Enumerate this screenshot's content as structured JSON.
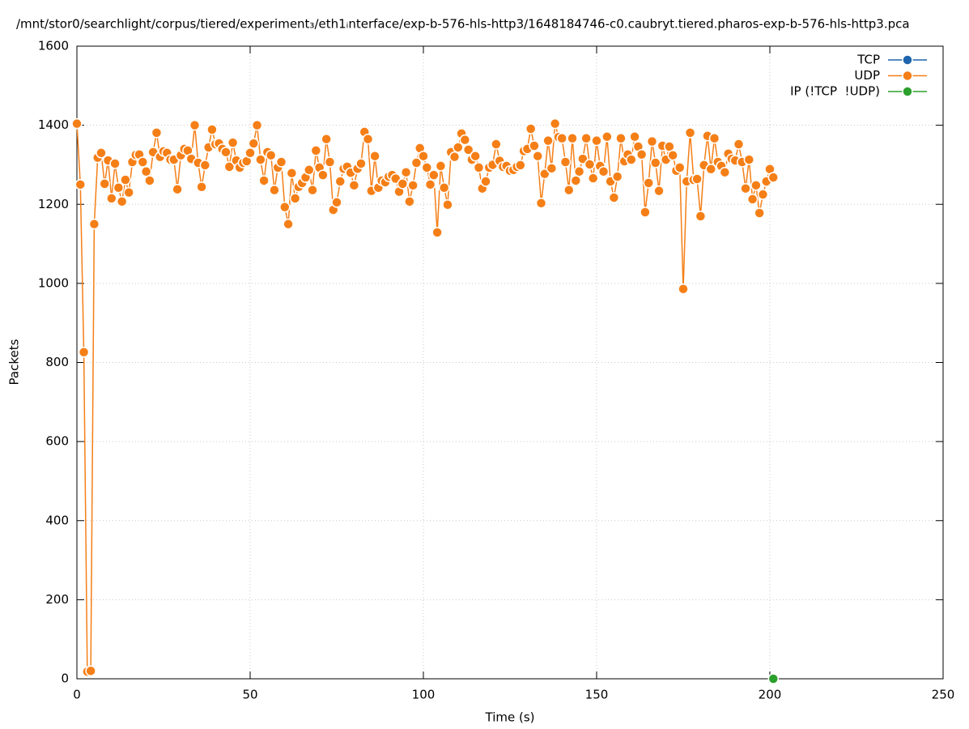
{
  "chart_data": {
    "type": "line",
    "title": "/mnt/stor0/searchlight/corpus/tiered/experiment₃/eth1ᵢnterface/exp-b-576-hls-http3/1648184746-c0.caubryt.tiered.pharos-exp-b-576-hls-http3.pca",
    "x_label": "Time (s)",
    "y_label": "Packets",
    "xlim": [
      0,
      250
    ],
    "ylim": [
      0,
      1600
    ],
    "xticks": [
      0,
      50,
      100,
      150,
      200,
      250
    ],
    "yticks": [
      0,
      200,
      400,
      600,
      800,
      1000,
      1200,
      1400,
      1600
    ],
    "grid": true,
    "legend": "top-right",
    "series": [
      {
        "name": "TCP",
        "color": "#1f64ad",
        "x": [],
        "values": []
      },
      {
        "name": "UDP",
        "color": "#f57f17",
        "x": [
          0,
          1,
          2,
          3,
          4,
          5,
          6,
          7,
          8,
          9,
          10,
          11,
          12,
          13,
          14,
          15,
          16,
          17,
          18,
          19,
          20,
          21,
          22,
          23,
          24,
          25,
          26,
          27,
          28,
          29,
          30,
          31,
          32,
          33,
          34,
          35,
          36,
          37,
          38,
          39,
          40,
          41,
          42,
          43,
          44,
          45,
          46,
          47,
          48,
          49,
          50,
          51,
          52,
          53,
          54,
          55,
          56,
          57,
          58,
          59,
          60,
          61,
          62,
          63,
          64,
          65,
          66,
          67,
          68,
          69,
          70,
          71,
          72,
          73,
          74,
          75,
          76,
          77,
          78,
          79,
          80,
          81,
          82,
          83,
          84,
          85,
          86,
          87,
          88,
          89,
          90,
          91,
          92,
          93,
          94,
          95,
          96,
          97,
          98,
          99,
          100,
          101,
          102,
          103,
          104,
          105,
          106,
          107,
          108,
          109,
          110,
          111,
          112,
          113,
          114,
          115,
          116,
          117,
          118,
          119,
          120,
          121,
          122,
          123,
          124,
          125,
          126,
          127,
          128,
          129,
          130,
          131,
          132,
          133,
          134,
          135,
          136,
          137,
          138,
          139,
          140,
          141,
          142,
          143,
          144,
          145,
          146,
          147,
          148,
          149,
          150,
          151,
          152,
          153,
          154,
          155,
          156,
          157,
          158,
          159,
          160,
          161,
          162,
          163,
          164,
          165,
          166,
          167,
          168,
          169,
          170,
          171,
          172,
          173,
          174,
          175,
          176,
          177,
          178,
          179,
          180,
          181,
          182,
          183,
          184,
          185,
          186,
          187,
          188,
          189,
          190,
          191,
          192,
          193,
          194,
          195,
          196,
          197,
          198,
          199,
          200,
          201
        ],
        "values": [
          1404,
          1250,
          826,
          18,
          20,
          1150,
          1318,
          1330,
          1252,
          1311,
          1215,
          1303,
          1242,
          1207,
          1262,
          1230,
          1307,
          1325,
          1326,
          1307,
          1283,
          1260,
          1332,
          1381,
          1320,
          1334,
          1330,
          1313,
          1313,
          1238,
          1324,
          1340,
          1336,
          1315,
          1400,
          1305,
          1244,
          1299,
          1344,
          1389,
          1352,
          1354,
          1340,
          1332,
          1295,
          1356,
          1311,
          1293,
          1305,
          1309,
          1330,
          1354,
          1400,
          1313,
          1260,
          1332,
          1324,
          1236,
          1293,
          1307,
          1193,
          1150,
          1279,
          1215,
          1244,
          1254,
          1268,
          1287,
          1236,
          1336,
          1293,
          1274,
          1365,
          1307,
          1186,
          1205,
          1258,
          1290,
          1295,
          1280,
          1248,
          1290,
          1303,
          1383,
          1365,
          1234,
          1322,
          1242,
          1260,
          1256,
          1270,
          1274,
          1265,
          1232,
          1252,
          1281,
          1207,
          1248,
          1305,
          1342,
          1322,
          1293,
          1250,
          1274,
          1129,
          1297,
          1242,
          1199,
          1332,
          1320,
          1344,
          1379,
          1363,
          1338,
          1313,
          1322,
          1293,
          1240,
          1258,
          1293,
          1300,
          1352,
          1310,
          1295,
          1297,
          1285,
          1287,
          1295,
          1299,
          1335,
          1340,
          1391,
          1348,
          1322,
          1203,
          1277,
          1361,
          1291,
          1404,
          1370,
          1367,
          1307,
          1236,
          1367,
          1260,
          1283,
          1315,
          1367,
          1301,
          1266,
          1361,
          1297,
          1283,
          1371,
          1258,
          1217,
          1270,
          1367,
          1309,
          1326,
          1313,
          1371,
          1346,
          1326,
          1180,
          1254,
          1359,
          1305,
          1234,
          1348,
          1313,
          1346,
          1324,
          1285,
          1293,
          986,
          1258,
          1381,
          1262,
          1264,
          1170,
          1299,
          1373,
          1289,
          1367,
          1307,
          1297,
          1281,
          1328,
          1315,
          1311,
          1352,
          1307,
          1240,
          1313,
          1213,
          1248,
          1178,
          1225,
          1258,
          1289,
          1268
        ]
      },
      {
        "name": "IP (!TCP  !UDP)",
        "color": "#2ca02c",
        "x": [
          201
        ],
        "values": [
          0
        ]
      }
    ]
  }
}
